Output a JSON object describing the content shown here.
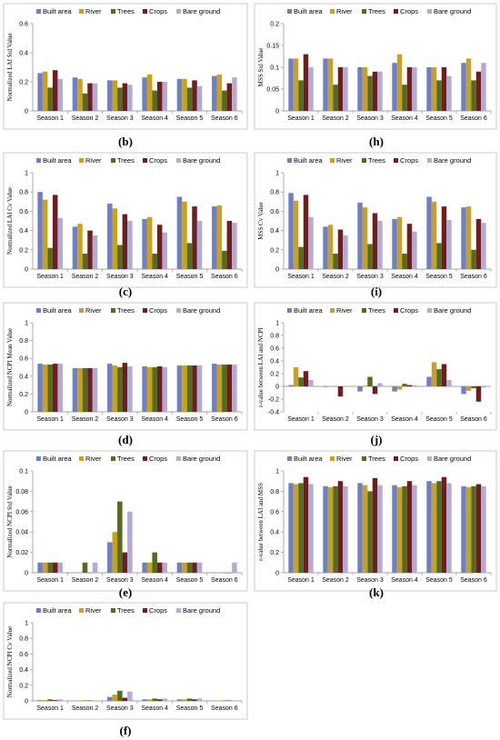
{
  "colors": {
    "Built area": "#6f7fc4",
    "River": "#c8a21a",
    "Trees": "#556b1f",
    "Crops": "#6b1f1f",
    "Bare ground": "#b3aad6"
  },
  "chart_data": [
    {
      "type": "bar",
      "panel": "(b)",
      "ylabel": "Normalized LAI Std Value",
      "categories": [
        "Season 1",
        "Season 2",
        "Season 3",
        "Season 4",
        "Season 5",
        "Season 6"
      ],
      "ylim": [
        0,
        0.6
      ],
      "yticks": [
        "0",
        "0.2",
        "0.4",
        "0.6"
      ],
      "ytick_values": [
        0,
        0.2,
        0.4,
        0.6
      ],
      "legend": [
        "Built area",
        "River",
        "Trees",
        "Crops",
        "Bare ground"
      ],
      "series": [
        {
          "name": "Built area",
          "values": [
            0.26,
            0.23,
            0.21,
            0.23,
            0.22,
            0.24
          ]
        },
        {
          "name": "River",
          "values": [
            0.27,
            0.22,
            0.21,
            0.25,
            0.22,
            0.25
          ]
        },
        {
          "name": "Trees",
          "values": [
            0.16,
            0.12,
            0.16,
            0.14,
            0.16,
            0.14
          ]
        },
        {
          "name": "Crops",
          "values": [
            0.28,
            0.19,
            0.19,
            0.2,
            0.21,
            0.19
          ]
        },
        {
          "name": "Bare ground",
          "values": [
            0.22,
            0.19,
            0.18,
            0.2,
            0.17,
            0.23
          ]
        }
      ]
    },
    {
      "type": "bar",
      "panel": "(h)",
      "ylabel": "MSS Std Value",
      "categories": [
        "Season 1",
        "Season 2",
        "Season 3",
        "Season 4",
        "Season 5",
        "Season 6"
      ],
      "ylim": [
        0,
        0.2
      ],
      "yticks": [
        "0",
        "0.05",
        "0.1",
        "0.15",
        "0.2"
      ],
      "ytick_values": [
        0,
        0.05,
        0.1,
        0.15,
        0.2
      ],
      "legend": [
        "Built area",
        "River",
        "Trees",
        "Crops",
        "Bare ground"
      ],
      "series": [
        {
          "name": "Built area",
          "values": [
            0.12,
            0.12,
            0.1,
            0.11,
            0.1,
            0.11
          ]
        },
        {
          "name": "River",
          "values": [
            0.12,
            0.12,
            0.1,
            0.13,
            0.1,
            0.12
          ]
        },
        {
          "name": "Trees",
          "values": [
            0.07,
            0.06,
            0.08,
            0.06,
            0.07,
            0.07
          ]
        },
        {
          "name": "Crops",
          "values": [
            0.13,
            0.1,
            0.09,
            0.1,
            0.1,
            0.09
          ]
        },
        {
          "name": "Bare ground",
          "values": [
            0.1,
            0.1,
            0.09,
            0.1,
            0.08,
            0.11
          ]
        }
      ]
    },
    {
      "type": "bar",
      "panel": "(c)",
      "ylabel": "Normalized LAI Cv Value",
      "categories": [
        "Season 1",
        "Season 2",
        "Season 3",
        "Season 4",
        "Season 5",
        "Season 6"
      ],
      "ylim": [
        0,
        1
      ],
      "yticks": [
        "0",
        "0.2",
        "0.4",
        "0.6",
        "0.8",
        "1"
      ],
      "ytick_values": [
        0,
        0.2,
        0.4,
        0.6,
        0.8,
        1
      ],
      "legend": [
        "Built area",
        "River",
        "Trees",
        "Crops",
        "Bare ground"
      ],
      "series": [
        {
          "name": "Built area",
          "values": [
            0.8,
            0.44,
            0.68,
            0.52,
            0.75,
            0.65
          ]
        },
        {
          "name": "River",
          "values": [
            0.72,
            0.47,
            0.63,
            0.54,
            0.7,
            0.66
          ]
        },
        {
          "name": "Trees",
          "values": [
            0.22,
            0.16,
            0.25,
            0.16,
            0.27,
            0.19
          ]
        },
        {
          "name": "Crops",
          "values": [
            0.77,
            0.4,
            0.57,
            0.46,
            0.65,
            0.5
          ]
        },
        {
          "name": "Bare ground",
          "values": [
            0.53,
            0.35,
            0.5,
            0.38,
            0.5,
            0.48
          ]
        }
      ]
    },
    {
      "type": "bar",
      "panel": "(i)",
      "ylabel": "MSS Cv Value",
      "categories": [
        "Season 1",
        "Season 2",
        "Season 3",
        "Season 4",
        "Season 5",
        "Season 6"
      ],
      "ylim": [
        0,
        1
      ],
      "yticks": [
        "0",
        "0.2",
        "0.4",
        "0.6",
        "0.8",
        "1"
      ],
      "ytick_values": [
        0,
        0.2,
        0.4,
        0.6,
        0.8,
        1
      ],
      "legend": [
        "Built area",
        "River",
        "Trees",
        "Crops",
        "Bare ground"
      ],
      "series": [
        {
          "name": "Built area",
          "values": [
            0.79,
            0.44,
            0.69,
            0.52,
            0.75,
            0.64
          ]
        },
        {
          "name": "River",
          "values": [
            0.71,
            0.46,
            0.64,
            0.54,
            0.7,
            0.65
          ]
        },
        {
          "name": "Trees",
          "values": [
            0.23,
            0.16,
            0.26,
            0.16,
            0.27,
            0.2
          ]
        },
        {
          "name": "Crops",
          "values": [
            0.77,
            0.41,
            0.58,
            0.47,
            0.65,
            0.52
          ]
        },
        {
          "name": "Bare ground",
          "values": [
            0.54,
            0.35,
            0.5,
            0.39,
            0.51,
            0.48
          ]
        }
      ]
    },
    {
      "type": "bar",
      "panel": "(d)",
      "ylabel": "Normalized NCPI Mean Value",
      "categories": [
        "Season 1",
        "Season 2",
        "Season 3",
        "Season 4",
        "Season 5",
        "Season 6"
      ],
      "ylim": [
        0,
        1
      ],
      "yticks": [
        "0",
        "0.2",
        "0.4",
        "0.6",
        "0.8",
        "1"
      ],
      "ytick_values": [
        0,
        0.2,
        0.4,
        0.6,
        0.8,
        1
      ],
      "legend": [
        "Built area",
        "River",
        "Trees",
        "Crops",
        "Bare ground"
      ],
      "series": [
        {
          "name": "Built area",
          "values": [
            0.54,
            0.49,
            0.54,
            0.51,
            0.52,
            0.54
          ]
        },
        {
          "name": "River",
          "values": [
            0.53,
            0.49,
            0.52,
            0.5,
            0.52,
            0.53
          ]
        },
        {
          "name": "Trees",
          "values": [
            0.53,
            0.49,
            0.5,
            0.5,
            0.52,
            0.53
          ]
        },
        {
          "name": "Crops",
          "values": [
            0.54,
            0.49,
            0.55,
            0.51,
            0.52,
            0.53
          ]
        },
        {
          "name": "Bare ground",
          "values": [
            0.54,
            0.49,
            0.51,
            0.5,
            0.52,
            0.53
          ]
        }
      ]
    },
    {
      "type": "bar",
      "panel": "(j)",
      "ylabel": "r-value between LAI and NCPI",
      "categories": [
        "Season 1",
        "Season 2",
        "Season 3",
        "Season 4",
        "Season 5",
        "Season 6"
      ],
      "ylim": [
        -0.4,
        1
      ],
      "yticks": [
        "-0.4",
        "-0.2",
        "0",
        "0.2",
        "0.4",
        "0.6",
        "0.8",
        "1"
      ],
      "ytick_values": [
        -0.4,
        -0.2,
        0,
        0.2,
        0.4,
        0.6,
        0.8,
        1
      ],
      "legend": [
        "Built area",
        "River",
        "Trees",
        "Crops",
        "Bare ground"
      ],
      "series": [
        {
          "name": "Built area",
          "values": [
            0.02,
            -0.01,
            -0.08,
            -0.08,
            0.15,
            -0.12
          ]
        },
        {
          "name": "River",
          "values": [
            0.3,
            0.0,
            0.01,
            -0.05,
            0.38,
            -0.07
          ]
        },
        {
          "name": "Trees",
          "values": [
            0.14,
            0.0,
            0.15,
            0.04,
            0.27,
            -0.03
          ]
        },
        {
          "name": "Crops",
          "values": [
            0.24,
            -0.16,
            -0.12,
            0.02,
            0.35,
            -0.24
          ]
        },
        {
          "name": "Bare ground",
          "values": [
            0.1,
            0.0,
            0.05,
            0.02,
            0.1,
            -0.02
          ]
        }
      ]
    },
    {
      "type": "bar",
      "panel": "(e)",
      "ylabel": "Normalized NCPI Std Value",
      "categories": [
        "Season 1",
        "Season 2",
        "Season 3",
        "Season 4",
        "Season 5",
        "Season 6"
      ],
      "ylim": [
        0,
        0.1
      ],
      "yticks": [
        "0",
        "0.02",
        "0.04",
        "0.06",
        "0.08",
        "0.1"
      ],
      "ytick_values": [
        0,
        0.02,
        0.04,
        0.06,
        0.08,
        0.1
      ],
      "legend": [
        "Built area",
        "River",
        "Trees",
        "Crops",
        "Bare ground"
      ],
      "series": [
        {
          "name": "Built area",
          "values": [
            0.01,
            0,
            0.03,
            0.01,
            0.01,
            0
          ]
        },
        {
          "name": "River",
          "values": [
            0.01,
            0,
            0.04,
            0.01,
            0.01,
            0
          ]
        },
        {
          "name": "Trees",
          "values": [
            0.01,
            0.01,
            0.07,
            0.02,
            0.01,
            0
          ]
        },
        {
          "name": "Crops",
          "values": [
            0.01,
            0,
            0.02,
            0.01,
            0.01,
            0
          ]
        },
        {
          "name": "Bare ground",
          "values": [
            0.01,
            0.01,
            0.06,
            0.01,
            0.01,
            0.01
          ]
        }
      ]
    },
    {
      "type": "bar",
      "panel": "(k)",
      "ylabel": "r-value between LAI and MSS",
      "categories": [
        "Season 1",
        "Season 2",
        "Season 3",
        "Season 4",
        "Season 5",
        "Season 6"
      ],
      "ylim": [
        0,
        1
      ],
      "yticks": [
        "0",
        "0.2",
        "0.4",
        "0.6",
        "0.8",
        "1"
      ],
      "ytick_values": [
        0,
        0.2,
        0.4,
        0.6,
        0.8,
        1
      ],
      "legend": [
        "Built area",
        "River",
        "Trees",
        "Crops",
        "Bare ground"
      ],
      "series": [
        {
          "name": "Built area",
          "values": [
            0.88,
            0.85,
            0.88,
            0.86,
            0.9,
            0.85
          ]
        },
        {
          "name": "River",
          "values": [
            0.87,
            0.84,
            0.86,
            0.84,
            0.88,
            0.84
          ]
        },
        {
          "name": "Trees",
          "values": [
            0.88,
            0.85,
            0.8,
            0.85,
            0.9,
            0.85
          ]
        },
        {
          "name": "Crops",
          "values": [
            0.94,
            0.9,
            0.93,
            0.9,
            0.94,
            0.87
          ]
        },
        {
          "name": "Bare ground",
          "values": [
            0.87,
            0.85,
            0.86,
            0.86,
            0.88,
            0.85
          ]
        }
      ]
    },
    {
      "type": "bar",
      "panel": "(f)",
      "ylabel": "Normalized NCPI Cv Value",
      "categories": [
        "Season 1",
        "Season 2",
        "Season 3",
        "Season 4",
        "Season 5",
        "Season 6"
      ],
      "ylim": [
        0,
        1
      ],
      "yticks": [
        "0",
        "0.2",
        "0.4",
        "0.6",
        "0.8",
        "1"
      ],
      "ytick_values": [
        0,
        0.2,
        0.4,
        0.6,
        0.8,
        1
      ],
      "legend": [
        "Built area",
        "River",
        "Trees",
        "Crops",
        "Bare ground"
      ],
      "series": [
        {
          "name": "Built area",
          "values": [
            0.01,
            0.005,
            0.05,
            0.02,
            0.02,
            0.005
          ]
        },
        {
          "name": "River",
          "values": [
            0.01,
            0.005,
            0.08,
            0.02,
            0.02,
            0.005
          ]
        },
        {
          "name": "Trees",
          "values": [
            0.02,
            0.005,
            0.13,
            0.03,
            0.03,
            0.005
          ]
        },
        {
          "name": "Crops",
          "values": [
            0.01,
            0.005,
            0.04,
            0.02,
            0.02,
            0.005
          ]
        },
        {
          "name": "Bare ground",
          "values": [
            0.02,
            0.005,
            0.12,
            0.03,
            0.03,
            0.005
          ]
        }
      ]
    }
  ]
}
